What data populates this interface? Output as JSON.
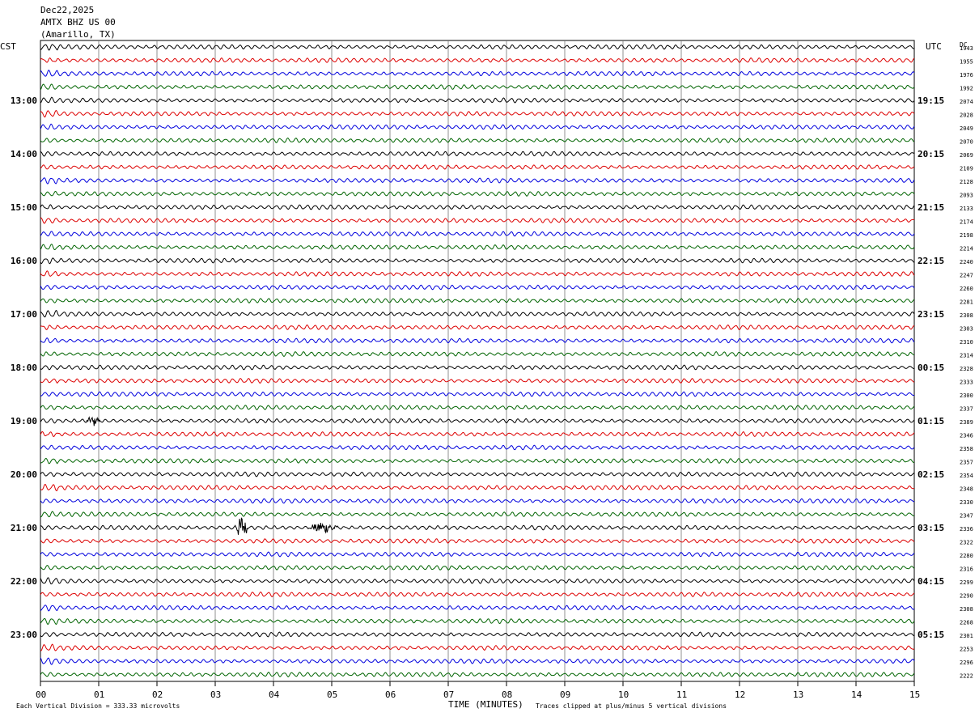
{
  "header": {
    "date": "Dec22,2025",
    "station": "AMTX BHZ US 00",
    "location": "(Amarillo, TX)"
  },
  "left_axis_title": "CST",
  "right_axis_title": "UTC",
  "right_column_title": "DC",
  "footer": {
    "scale_note": "Each Vertical Division =  333.33 microvolts",
    "clip_note": "Traces clipped at plus/minus 5 vertical divisions",
    "xlabel": "TIME (MINUTES)"
  },
  "chart_data": {
    "type": "line",
    "title": "",
    "xlabel": "TIME (MINUTES)",
    "ylabel": "",
    "xlim": [
      0,
      15
    ],
    "x_ticks": [
      "00",
      "01",
      "02",
      "03",
      "04",
      "05",
      "06",
      "07",
      "08",
      "09",
      "10",
      "11",
      "12",
      "13",
      "14",
      "15"
    ],
    "left_hour_labels": [
      "13:00",
      "14:00",
      "15:00",
      "16:00",
      "17:00",
      "18:00",
      "19:00",
      "20:00",
      "21:00",
      "22:00",
      "23:00"
    ],
    "right_hour_labels": [
      "19:15",
      "20:15",
      "21:15",
      "22:15",
      "23:15",
      "00:15",
      "01:15",
      "02:15",
      "03:15",
      "04:15",
      "05:15"
    ],
    "hour_label_first_trace": 4,
    "trace_colors": [
      "#000000",
      "#dd0000",
      "#0000dd",
      "#006400"
    ],
    "trace_count": 48,
    "trace_minutes": 15,
    "dc_offsets": [
      "1943",
      "1955",
      "1976",
      "1992",
      "2074",
      "2028",
      "2049",
      "2070",
      "2069",
      "2109",
      "2128",
      "2093",
      "2133",
      "2174",
      "2198",
      "2214",
      "2240",
      "2247",
      "2260",
      "2281",
      "2308",
      "2303",
      "2310",
      "2314",
      "2328",
      "2333",
      "2300",
      "2337",
      "2389",
      "2346",
      "2358",
      "2357",
      "2354",
      "2348",
      "2330",
      "2347",
      "2336",
      "2322",
      "2280",
      "2316",
      "2299",
      "2290",
      "2308",
      "2268",
      "2301",
      "2253",
      "2296",
      "2222"
    ],
    "events": [
      {
        "trace": 28,
        "minute": 0.9,
        "description": "small burst"
      },
      {
        "trace": 36,
        "minute": 3.45,
        "description": "large spikes"
      },
      {
        "trace": 36,
        "minute": 4.85,
        "description": "burst"
      }
    ],
    "grid": true
  }
}
